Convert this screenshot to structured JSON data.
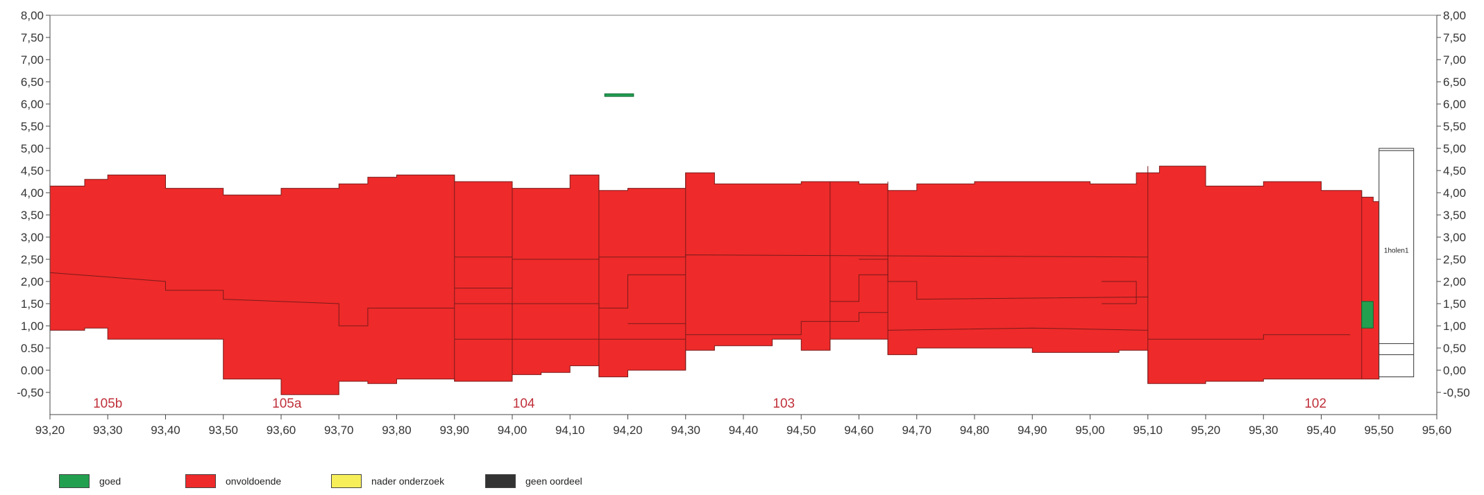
{
  "chart_data": {
    "type": "area",
    "title": "",
    "xlabel": "",
    "ylabel": "",
    "xlim": [
      93.2,
      95.6
    ],
    "ylim": [
      -1.0,
      8.0
    ],
    "x_ticks": [
      "93,20",
      "93,30",
      "93,40",
      "93,50",
      "93,60",
      "93,70",
      "93,80",
      "93,90",
      "94,00",
      "94,10",
      "94,20",
      "94,30",
      "94,40",
      "94,50",
      "94,60",
      "94,70",
      "94,80",
      "94,90",
      "95,00",
      "95,10",
      "95,20",
      "95,30",
      "95,40",
      "95,50",
      "95,60"
    ],
    "y_ticks": [
      "-0,50",
      "0,00",
      "0,50",
      "1,00",
      "1,50",
      "2,00",
      "2,50",
      "3,00",
      "3,50",
      "4,00",
      "4,50",
      "5,00",
      "5,50",
      "6,00",
      "6,50",
      "7,00",
      "7,50",
      "8,00"
    ],
    "y_ticks_left": [
      "-0,50",
      "0.00",
      "0.50",
      "1,00",
      "1,50",
      "2,00",
      "2,50",
      "3,00",
      "3,50",
      "4,00",
      "4,50",
      "5,00",
      "5,50",
      "6,00",
      "6,50",
      "7,00",
      "7,50",
      "8,00"
    ],
    "legend": [
      {
        "label": "goed",
        "color": "#22a050"
      },
      {
        "label": "onvoldoende",
        "color": "#ee2a2a"
      },
      {
        "label": "nader onderzoek",
        "color": "#f7ef5a"
      },
      {
        "label": "geen oordeel",
        "color": "#333333"
      }
    ],
    "colors": {
      "fill": "#ee2a2a",
      "good": "#22a050",
      "line": "#7a1a1a"
    },
    "sections": [
      {
        "label": "105b",
        "x": 93.3
      },
      {
        "label": "105a",
        "x": 93.61
      },
      {
        "label": "104",
        "x": 94.02
      },
      {
        "label": "103",
        "x": 94.47
      },
      {
        "label": "102",
        "x": 95.39
      }
    ],
    "top_profile": [
      [
        93.2,
        4.15
      ],
      [
        93.26,
        4.15
      ],
      [
        93.26,
        4.3
      ],
      [
        93.3,
        4.3
      ],
      [
        93.3,
        4.4
      ],
      [
        93.4,
        4.4
      ],
      [
        93.4,
        4.1
      ],
      [
        93.5,
        4.1
      ],
      [
        93.5,
        3.95
      ],
      [
        93.6,
        3.95
      ],
      [
        93.6,
        4.1
      ],
      [
        93.7,
        4.1
      ],
      [
        93.7,
        4.2
      ],
      [
        93.75,
        4.2
      ],
      [
        93.75,
        4.35
      ],
      [
        93.8,
        4.35
      ],
      [
        93.8,
        4.4
      ],
      [
        93.9,
        4.4
      ],
      [
        93.9,
        4.25
      ],
      [
        94.0,
        4.25
      ],
      [
        94.0,
        4.1
      ],
      [
        94.1,
        4.1
      ],
      [
        94.1,
        4.4
      ],
      [
        94.15,
        4.4
      ],
      [
        94.15,
        4.05
      ],
      [
        94.2,
        4.05
      ],
      [
        94.2,
        4.1
      ],
      [
        94.3,
        4.1
      ],
      [
        94.3,
        4.45
      ],
      [
        94.35,
        4.45
      ],
      [
        94.35,
        4.2
      ],
      [
        94.5,
        4.2
      ],
      [
        94.5,
        4.25
      ],
      [
        94.6,
        4.25
      ],
      [
        94.6,
        4.2
      ],
      [
        94.65,
        4.2
      ],
      [
        94.65,
        4.05
      ],
      [
        94.7,
        4.05
      ],
      [
        94.7,
        4.2
      ],
      [
        94.8,
        4.2
      ],
      [
        94.8,
        4.25
      ],
      [
        95.0,
        4.25
      ],
      [
        95.0,
        4.2
      ],
      [
        95.08,
        4.2
      ],
      [
        95.08,
        4.45
      ],
      [
        95.12,
        4.45
      ],
      [
        95.12,
        4.6
      ],
      [
        95.2,
        4.6
      ],
      [
        95.2,
        4.15
      ],
      [
        95.3,
        4.15
      ],
      [
        95.3,
        4.25
      ],
      [
        95.4,
        4.25
      ],
      [
        95.4,
        4.05
      ],
      [
        95.47,
        4.05
      ],
      [
        95.47,
        3.9
      ],
      [
        95.49,
        3.9
      ],
      [
        95.49,
        3.8
      ],
      [
        95.5,
        3.8
      ]
    ],
    "bottom_profile": [
      [
        93.2,
        0.9
      ],
      [
        93.26,
        0.9
      ],
      [
        93.26,
        0.95
      ],
      [
        93.3,
        0.95
      ],
      [
        93.3,
        0.7
      ],
      [
        93.5,
        0.7
      ],
      [
        93.5,
        -0.2
      ],
      [
        93.6,
        -0.2
      ],
      [
        93.6,
        -0.55
      ],
      [
        93.7,
        -0.55
      ],
      [
        93.7,
        -0.25
      ],
      [
        93.75,
        -0.25
      ],
      [
        93.75,
        -0.3
      ],
      [
        93.8,
        -0.3
      ],
      [
        93.8,
        -0.2
      ],
      [
        93.9,
        -0.2
      ],
      [
        93.9,
        -0.25
      ],
      [
        94.0,
        -0.25
      ],
      [
        94.0,
        -0.1
      ],
      [
        94.05,
        -0.1
      ],
      [
        94.05,
        -0.05
      ],
      [
        94.1,
        -0.05
      ],
      [
        94.1,
        0.1
      ],
      [
        94.15,
        0.1
      ],
      [
        94.15,
        -0.15
      ],
      [
        94.2,
        -0.15
      ],
      [
        94.2,
        0.0
      ],
      [
        94.3,
        0.0
      ],
      [
        94.3,
        0.45
      ],
      [
        94.35,
        0.45
      ],
      [
        94.35,
        0.55
      ],
      [
        94.45,
        0.55
      ],
      [
        94.45,
        0.7
      ],
      [
        94.5,
        0.7
      ],
      [
        94.5,
        0.45
      ],
      [
        94.55,
        0.45
      ],
      [
        94.55,
        0.7
      ],
      [
        94.65,
        0.7
      ],
      [
        94.65,
        0.35
      ],
      [
        94.7,
        0.35
      ],
      [
        94.7,
        0.5
      ],
      [
        94.9,
        0.5
      ],
      [
        94.9,
        0.4
      ],
      [
        95.05,
        0.4
      ],
      [
        95.05,
        0.45
      ],
      [
        95.1,
        0.45
      ],
      [
        95.1,
        -0.3
      ],
      [
        95.2,
        -0.3
      ],
      [
        95.2,
        -0.25
      ],
      [
        95.3,
        -0.25
      ],
      [
        95.3,
        -0.2
      ],
      [
        95.5,
        -0.2
      ]
    ],
    "layer_lines": [
      [
        [
          93.2,
          2.2
        ],
        [
          93.4,
          2.0
        ],
        [
          93.4,
          1.8
        ],
        [
          93.5,
          1.8
        ],
        [
          93.5,
          1.6
        ],
        [
          93.7,
          1.5
        ],
        [
          93.7,
          1.0
        ],
        [
          93.75,
          1.0
        ],
        [
          93.75,
          1.4
        ],
        [
          93.9,
          1.4
        ]
      ],
      [
        [
          93.9,
          2.55
        ],
        [
          94.0,
          2.55
        ],
        [
          94.0,
          2.5
        ],
        [
          94.15,
          2.5
        ],
        [
          94.15,
          2.55
        ],
        [
          94.3,
          2.55
        ],
        [
          94.3,
          2.6
        ],
        [
          95.1,
          2.55
        ]
      ],
      [
        [
          93.9,
          1.85
        ],
        [
          94.0,
          1.85
        ]
      ],
      [
        [
          93.9,
          1.5
        ],
        [
          94.15,
          1.5
        ],
        [
          94.15,
          1.4
        ],
        [
          94.2,
          1.4
        ],
        [
          94.2,
          2.15
        ],
        [
          94.3,
          2.15
        ]
      ],
      [
        [
          93.9,
          0.7
        ],
        [
          94.3,
          0.7
        ]
      ],
      [
        [
          94.2,
          1.05
        ],
        [
          94.3,
          1.05
        ]
      ],
      [
        [
          94.3,
          0.8
        ],
        [
          94.5,
          0.8
        ],
        [
          94.5,
          1.1
        ],
        [
          94.6,
          1.1
        ],
        [
          94.6,
          1.3
        ],
        [
          94.65,
          1.3
        ]
      ],
      [
        [
          94.55,
          1.55
        ],
        [
          94.6,
          1.55
        ],
        [
          94.6,
          2.15
        ],
        [
          94.65,
          2.15
        ]
      ],
      [
        [
          94.6,
          2.5
        ],
        [
          94.65,
          2.5
        ],
        [
          94.65,
          2.0
        ],
        [
          94.7,
          2.0
        ],
        [
          94.7,
          1.6
        ],
        [
          95.1,
          1.65
        ]
      ],
      [
        [
          94.65,
          0.9
        ],
        [
          94.9,
          0.95
        ],
        [
          95.1,
          0.9
        ]
      ],
      [
        [
          95.02,
          2.0
        ],
        [
          95.08,
          2.0
        ],
        [
          95.08,
          1.5
        ],
        [
          95.02,
          1.5
        ]
      ],
      [
        [
          95.1,
          0.7
        ],
        [
          95.3,
          0.7
        ],
        [
          95.3,
          0.8
        ],
        [
          95.45,
          0.8
        ]
      ]
    ],
    "dividers": [
      93.9,
      94.0,
      94.15,
      94.3,
      94.55,
      94.65,
      95.1,
      95.47
    ],
    "good_segments": [
      {
        "x0": 94.16,
        "x1": 94.21,
        "y0": 6.17,
        "y1": 6.23
      },
      {
        "x0": 95.47,
        "x1": 95.49,
        "y0": 0.95,
        "y1": 1.55
      }
    ],
    "box": {
      "x0": 95.5,
      "x1": 95.56,
      "y0": -0.15,
      "y1": 5.0,
      "label": "1holen1",
      "lines": [
        4.95,
        0.6,
        0.35
      ]
    }
  }
}
